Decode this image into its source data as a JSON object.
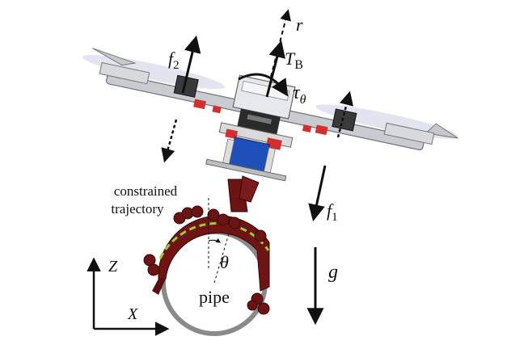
{
  "labels": {
    "r": "r",
    "thrust_base": "T",
    "thrust_sub": "B",
    "torque": "τ",
    "torque_sub": "θ",
    "f2": "f",
    "f2_sub": "2",
    "f1": "f",
    "f1_sub": "1",
    "trajectory_line1": "constrained",
    "trajectory_line2": "trajectory",
    "theta": "θ",
    "pipe": "pipe",
    "gravity": "g",
    "axis_z": "Z",
    "axis_x": "X"
  },
  "colors": {
    "arm_dark": "#5a1010",
    "arm_mid": "#7a1a1a",
    "pipe_ring": "#8a8a8a",
    "trajectory": "#9acd32",
    "body_gray": "#b9bcc2",
    "battery_blue": "#1f4fb8",
    "motor_red": "#d23030",
    "ink": "#111111"
  }
}
